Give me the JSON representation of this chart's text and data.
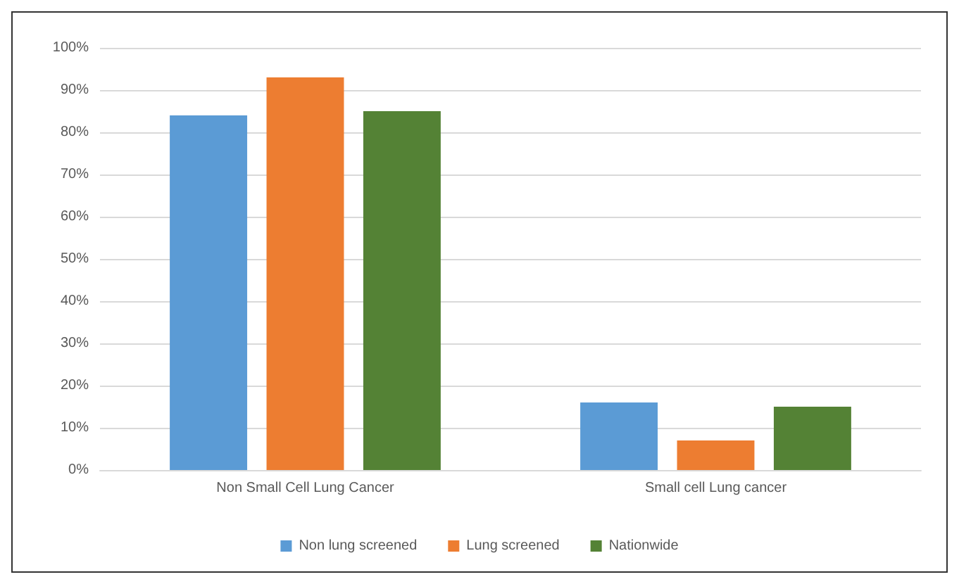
{
  "chart_data": {
    "type": "bar",
    "categories": [
      "Non Small Cell Lung Cancer",
      "Small cell Lung cancer"
    ],
    "series": [
      {
        "name": "Non lung screened",
        "color": "#5b9bd5",
        "values": [
          84,
          16
        ]
      },
      {
        "name": "Lung screened",
        "color": "#ed7d31",
        "values": [
          93,
          7
        ]
      },
      {
        "name": "Nationwide",
        "color": "#548235",
        "values": [
          85,
          15
        ]
      }
    ],
    "ylim": [
      0,
      100
    ],
    "yticks": [
      {
        "value": 0,
        "label": "0%"
      },
      {
        "value": 10,
        "label": "10%"
      },
      {
        "value": 20,
        "label": "20%"
      },
      {
        "value": 30,
        "label": "30%"
      },
      {
        "value": 40,
        "label": "40%"
      },
      {
        "value": 50,
        "label": "50%"
      },
      {
        "value": 60,
        "label": "60%"
      },
      {
        "value": 70,
        "label": "70%"
      },
      {
        "value": 80,
        "label": "80%"
      },
      {
        "value": 90,
        "label": "90%"
      },
      {
        "value": 100,
        "label": "100%"
      }
    ],
    "grid": "y",
    "legend": "bottom"
  }
}
